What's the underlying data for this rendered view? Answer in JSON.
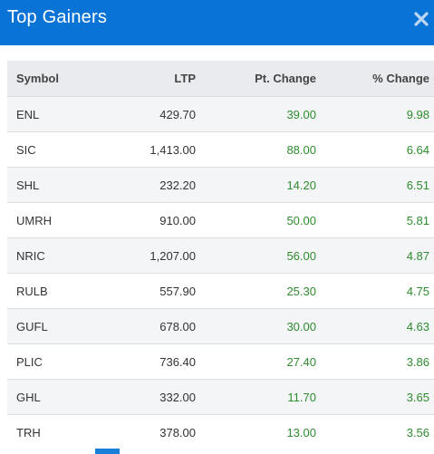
{
  "header": {
    "title": "Top Gainers",
    "close_icon": "close-icon",
    "background": "#0a73d6"
  },
  "table": {
    "columns": {
      "symbol": "Symbol",
      "ltp": "LTP",
      "pt_change": "Pt. Change",
      "pct_change": "% Change"
    },
    "rows": [
      {
        "symbol": "ENL",
        "ltp": "429.70",
        "pt_change": "39.00",
        "pct_change": "9.98"
      },
      {
        "symbol": "SIC",
        "ltp": "1,413.00",
        "pt_change": "88.00",
        "pct_change": "6.64"
      },
      {
        "symbol": "SHL",
        "ltp": "232.20",
        "pt_change": "14.20",
        "pct_change": "6.51"
      },
      {
        "symbol": "UMRH",
        "ltp": "910.00",
        "pt_change": "50.00",
        "pct_change": "5.81"
      },
      {
        "symbol": "NRIC",
        "ltp": "1,207.00",
        "pt_change": "56.00",
        "pct_change": "4.87"
      },
      {
        "symbol": "RULB",
        "ltp": "557.90",
        "pt_change": "25.30",
        "pct_change": "4.75"
      },
      {
        "symbol": "GUFL",
        "ltp": "678.00",
        "pt_change": "30.00",
        "pct_change": "4.63"
      },
      {
        "symbol": "PLIC",
        "ltp": "736.40",
        "pt_change": "27.40",
        "pct_change": "3.86"
      },
      {
        "symbol": "GHL",
        "ltp": "332.00",
        "pt_change": "11.70",
        "pct_change": "3.65"
      },
      {
        "symbol": "TRH",
        "ltp": "378.00",
        "pt_change": "13.00",
        "pct_change": "3.56"
      }
    ],
    "gain_color": "#2e8b2e"
  }
}
